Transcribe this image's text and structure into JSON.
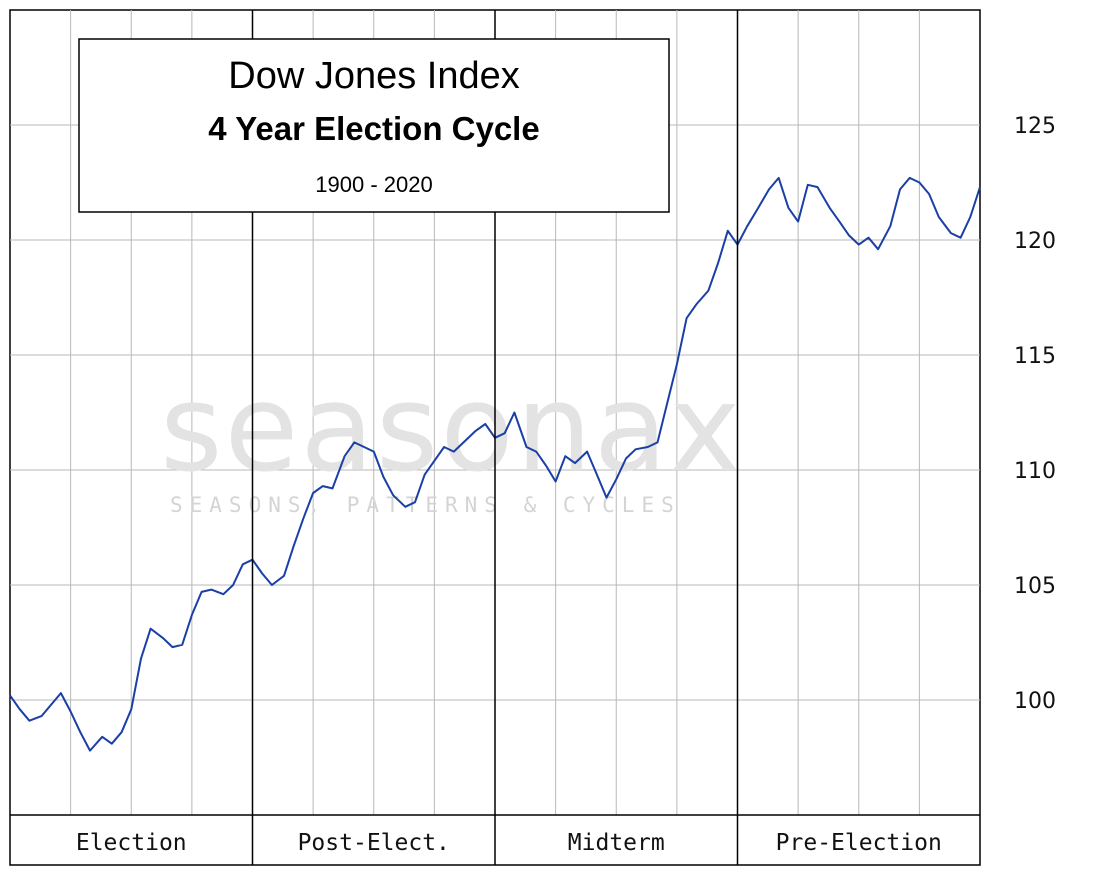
{
  "chart_data": {
    "type": "line",
    "title": "Dow Jones Index",
    "subtitle": "4 Year Election Cycle",
    "period": "1900 - 2020",
    "watermark": {
      "brand": "seasonax",
      "tagline": "SEASONS, PATTERNS & CYCLES"
    },
    "xlabel": "",
    "ylabel": "",
    "ylim": [
      95,
      128
    ],
    "y_ticks": [
      100,
      105,
      110,
      115,
      120,
      125
    ],
    "y_tick_labels": [
      "100",
      "105",
      "110",
      "115",
      "120",
      "125"
    ],
    "y_axis_side": "right",
    "grid": true,
    "x_phases": [
      "Election",
      "Post-Elect.",
      "Midterm",
      "Pre-Election"
    ],
    "x_range": [
      0,
      4
    ],
    "series_color": "#1a3fa6",
    "series": [
      {
        "x": [
          0.0,
          0.04,
          0.08,
          0.13,
          0.17,
          0.21,
          0.25,
          0.29,
          0.33,
          0.38,
          0.42,
          0.46,
          0.5,
          0.54,
          0.58,
          0.63,
          0.67,
          0.71,
          0.75,
          0.79,
          0.83,
          0.88,
          0.92,
          0.96,
          1.0,
          1.04,
          1.08,
          1.13,
          1.17,
          1.21,
          1.25,
          1.29,
          1.33,
          1.38,
          1.42,
          1.46,
          1.5,
          1.54,
          1.58,
          1.63,
          1.67,
          1.71,
          1.75,
          1.79,
          1.83,
          1.88,
          1.92,
          1.96,
          2.0,
          2.04,
          2.08,
          2.13,
          2.17,
          2.21,
          2.25,
          2.29,
          2.33,
          2.38,
          2.42,
          2.46,
          2.5,
          2.54,
          2.58,
          2.63,
          2.67,
          2.71,
          2.75,
          2.79,
          2.83,
          2.88,
          2.92,
          2.96,
          3.0,
          3.04,
          3.08,
          3.13,
          3.17,
          3.21,
          3.25,
          3.29,
          3.33,
          3.38,
          3.42,
          3.46,
          3.5,
          3.54,
          3.58,
          3.63,
          3.67,
          3.71,
          3.75,
          3.79,
          3.83,
          3.88,
          3.92,
          3.96,
          4.0
        ],
        "values": [
          100.2,
          99.6,
          99.1,
          99.3,
          99.8,
          100.3,
          99.5,
          98.6,
          97.8,
          98.4,
          98.1,
          98.6,
          99.6,
          101.8,
          103.1,
          102.7,
          102.3,
          102.4,
          103.7,
          104.7,
          104.8,
          104.6,
          105.0,
          105.9,
          106.1,
          105.5,
          105.0,
          105.4,
          106.7,
          107.9,
          109.0,
          109.3,
          109.2,
          110.6,
          111.2,
          111.0,
          110.8,
          109.7,
          108.9,
          108.4,
          108.6,
          109.8,
          110.4,
          111.0,
          110.8,
          111.3,
          111.7,
          112.0,
          111.4,
          111.6,
          112.5,
          111.0,
          110.8,
          110.2,
          109.5,
          110.6,
          110.3,
          110.8,
          109.8,
          108.8,
          109.6,
          110.5,
          110.9,
          111.0,
          111.2,
          112.9,
          114.6,
          116.6,
          117.2,
          117.8,
          119.0,
          120.4,
          119.8,
          120.6,
          121.3,
          122.2,
          122.7,
          121.4,
          120.8,
          122.4,
          122.3,
          121.4,
          120.8,
          120.2,
          119.8,
          120.1,
          119.6,
          120.6,
          122.2,
          122.7,
          122.5,
          122.0,
          121.0,
          120.3,
          120.1,
          121.0,
          122.3
        ]
      }
    ]
  }
}
